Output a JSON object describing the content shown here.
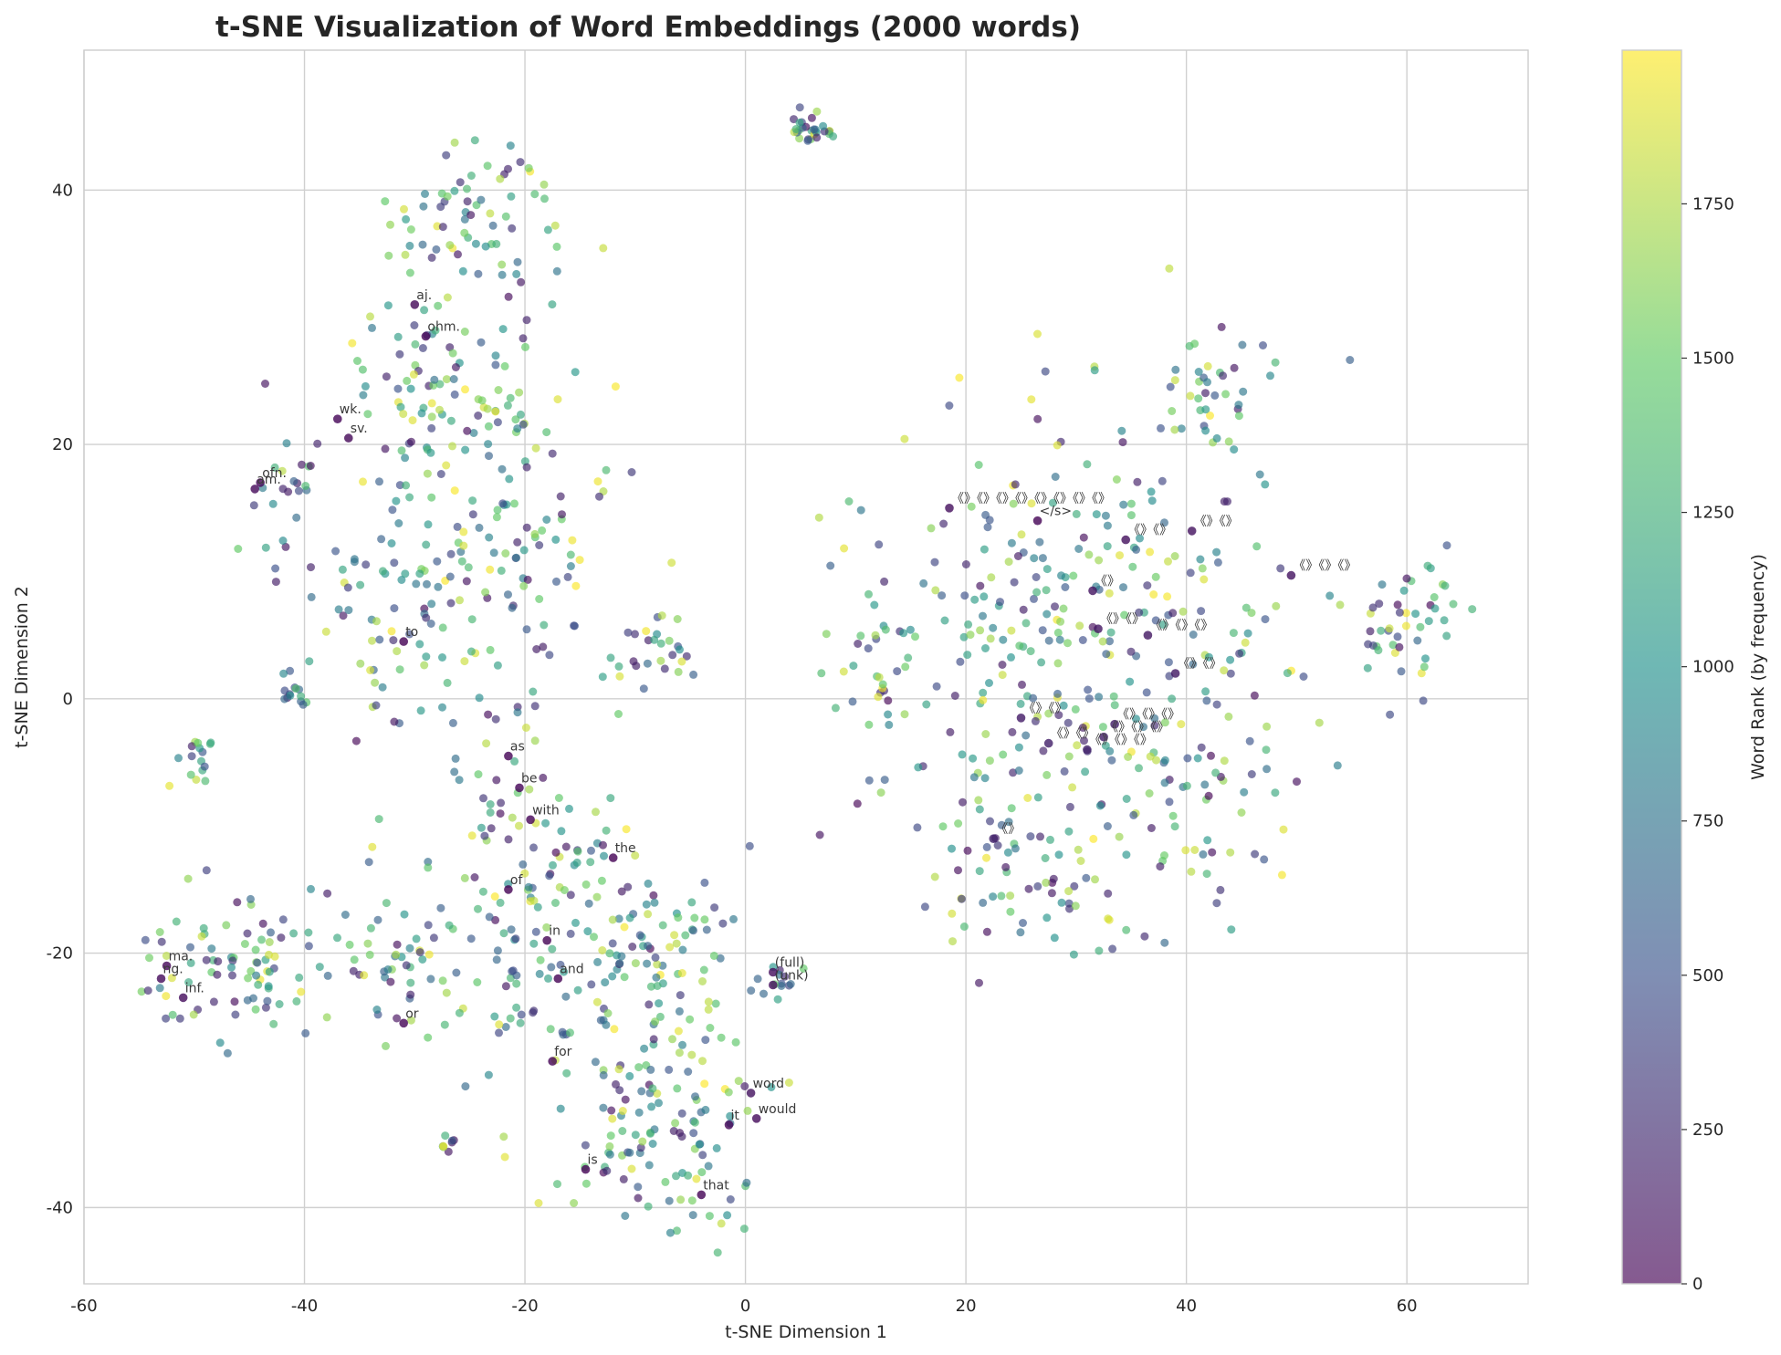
{
  "chart_data": {
    "type": "scatter",
    "title": "t-SNE Visualization of Word Embeddings (2000 words)",
    "xlabel": "t-SNE Dimension 1",
    "ylabel": "t-SNE Dimension 2",
    "xlim": [
      -60,
      71
    ],
    "ylim": [
      -46,
      51
    ],
    "x_ticks": [
      "-60",
      "-40",
      "-20",
      "0",
      "20",
      "40",
      "60"
    ],
    "y_ticks": [
      "-40",
      "-20",
      "0",
      "20",
      "40"
    ],
    "grid": true,
    "colormap": "viridis",
    "colors": [
      "#440154",
      "#3b528b",
      "#21918c",
      "#5ec962",
      "#fde725"
    ],
    "colorbar": {
      "label": "Word Rank (by frequency)",
      "range": [
        0,
        1999
      ],
      "ticks": [
        "0",
        "250",
        "500",
        "750",
        "1000",
        "1250",
        "1500",
        "1750"
      ]
    },
    "clusters": [
      {
        "cx": -24,
        "cy": 38,
        "sx": 4.0,
        "sy": 3.5,
        "n": 70
      },
      {
        "cx": -27,
        "cy": 25,
        "sx": 5.0,
        "sy": 4.5,
        "n": 90
      },
      {
        "cx": -22,
        "cy": 12,
        "sx": 6.0,
        "sy": 6.0,
        "n": 130
      },
      {
        "cx": -32,
        "cy": 6,
        "sx": 4.0,
        "sy": 4.0,
        "n": 50
      },
      {
        "cx": -42,
        "cy": 15,
        "sx": 1.6,
        "sy": 2.8,
        "n": 24
      },
      {
        "cx": -41,
        "cy": 0.5,
        "sx": 0.8,
        "sy": 0.8,
        "n": 14
      },
      {
        "cx": -50,
        "cy": -5,
        "sx": 1.3,
        "sy": 1.5,
        "n": 16
      },
      {
        "cx": -47,
        "cy": -21,
        "sx": 4.5,
        "sy": 2.5,
        "n": 80
      },
      {
        "cx": -30,
        "cy": -21,
        "sx": 5.0,
        "sy": 4.0,
        "n": 80
      },
      {
        "cx": -20,
        "cy": -12,
        "sx": 4.0,
        "sy": 6.0,
        "n": 80
      },
      {
        "cx": -10,
        "cy": -22,
        "sx": 6.0,
        "sy": 6.0,
        "n": 150
      },
      {
        "cx": -8,
        "cy": -35,
        "sx": 5.0,
        "sy": 3.5,
        "n": 90
      },
      {
        "cx": -8,
        "cy": 4,
        "sx": 2.0,
        "sy": 1.5,
        "n": 24
      },
      {
        "cx": 6,
        "cy": 45,
        "sx": 1.2,
        "sy": 0.7,
        "n": 28
      },
      {
        "cx": 3,
        "cy": -22,
        "sx": 1.0,
        "sy": 0.8,
        "n": 12
      },
      {
        "cx": -27,
        "cy": -35,
        "sx": 0.4,
        "sy": 0.3,
        "n": 8
      },
      {
        "cx": 30,
        "cy": 5,
        "sx": 10.0,
        "sy": 9.0,
        "n": 300
      },
      {
        "cx": 42,
        "cy": 24,
        "sx": 2.0,
        "sy": 2.5,
        "n": 34
      },
      {
        "cx": 60,
        "cy": 6,
        "sx": 2.5,
        "sy": 2.5,
        "n": 44
      },
      {
        "cx": 22,
        "cy": -12,
        "sx": 3.0,
        "sy": 3.0,
        "n": 40
      },
      {
        "cx": 30,
        "cy": -17,
        "sx": 2.5,
        "sy": 2.5,
        "n": 24
      },
      {
        "cx": 40,
        "cy": -8,
        "sx": 5.0,
        "sy": 4.0,
        "n": 60
      },
      {
        "cx": 12,
        "cy": 2,
        "sx": 2.0,
        "sy": 4.0,
        "n": 24
      }
    ],
    "annotations": [
      {
        "text": "aj.",
        "x": -30,
        "y": 31,
        "rank": 40
      },
      {
        "text": "ohm.",
        "x": -29,
        "y": 28.5,
        "rank": 30
      },
      {
        "text": "wk.",
        "x": -37,
        "y": 22,
        "rank": 20
      },
      {
        "text": "sv.",
        "x": -36,
        "y": 20.5,
        "rank": 35
      },
      {
        "text": "ofn.",
        "x": -44,
        "y": 17,
        "rank": 25
      },
      {
        "text": "am.",
        "x": -44.5,
        "y": 16.5,
        "rank": 45
      },
      {
        "text": "to",
        "x": -31,
        "y": 4.5,
        "rank": 3
      },
      {
        "text": "as",
        "x": -21.5,
        "y": -4.5,
        "rank": 12
      },
      {
        "text": "be",
        "x": -20.5,
        "y": -7,
        "rank": 14
      },
      {
        "text": "with",
        "x": -19.5,
        "y": -9.5,
        "rank": 11
      },
      {
        "text": "the",
        "x": -12,
        "y": -12.5,
        "rank": 0
      },
      {
        "text": "of",
        "x": -21.5,
        "y": -15,
        "rank": 1
      },
      {
        "text": "in",
        "x": -18,
        "y": -19,
        "rank": 4
      },
      {
        "text": "and",
        "x": -17,
        "y": -22,
        "rank": 2
      },
      {
        "text": "ma.",
        "x": -52.5,
        "y": -21,
        "rank": 30
      },
      {
        "text": "ng.",
        "x": -53,
        "y": -22,
        "rank": 50
      },
      {
        "text": "inf.",
        "x": -51,
        "y": -23.5,
        "rank": 60
      },
      {
        "text": "or",
        "x": -31,
        "y": -25.5,
        "rank": 22
      },
      {
        "text": "for",
        "x": -17.5,
        "y": -28.5,
        "rank": 7
      },
      {
        "text": "word",
        "x": 0.5,
        "y": -31,
        "rank": 90
      },
      {
        "text": "would",
        "x": 1,
        "y": -33,
        "rank": 55
      },
      {
        "text": "it",
        "x": -1.5,
        "y": -33.5,
        "rank": 16
      },
      {
        "text": "is",
        "x": -14.5,
        "y": -37,
        "rank": 8
      },
      {
        "text": "that",
        "x": -4,
        "y": -39,
        "rank": 9
      },
      {
        "text": "(full)",
        "x": 2.5,
        "y": -21.5,
        "rank": 70
      },
      {
        "text": "(unk)",
        "x": 2.5,
        "y": -22.5,
        "rank": 75
      },
      {
        "text": "《》《》《》《》《》《》《》《》",
        "x": 18.5,
        "y": 15,
        "rank": 80
      },
      {
        "text": "</s>",
        "x": 26.5,
        "y": 14,
        "rank": 5
      },
      {
        "text": "《》《》",
        "x": 34.5,
        "y": 12.5,
        "rank": 85
      },
      {
        "text": "《》《》",
        "x": 40.5,
        "y": 13.2,
        "rank": 95
      },
      {
        "text": "《》《》《》",
        "x": 49.5,
        "y": 9.7,
        "rank": 100
      },
      {
        "text": "《》",
        "x": 31.5,
        "y": 8.5,
        "rank": 110
      },
      {
        "text": "《》《》",
        "x": 32,
        "y": 5.5,
        "rank": 120
      },
      {
        "text": "《》《》《》",
        "x": 36.5,
        "y": 5,
        "rank": 130
      },
      {
        "text": "《》《》",
        "x": 39,
        "y": 2,
        "rank": 140
      },
      {
        "text": "《》《》",
        "x": 25,
        "y": -1.5,
        "rank": 150
      },
      {
        "text": "《》《》《》",
        "x": 33.5,
        "y": -2,
        "rank": 160
      },
      {
        "text": "《》《》《》",
        "x": 32.5,
        "y": -3,
        "rank": 170
      },
      {
        "text": "《》《》",
        "x": 27.5,
        "y": -3.5,
        "rank": 180
      },
      {
        "text": "《》《》《》",
        "x": 31,
        "y": -4,
        "rank": 190
      },
      {
        "text": "《》",
        "x": 22.5,
        "y": -11,
        "rank": 200
      }
    ]
  }
}
